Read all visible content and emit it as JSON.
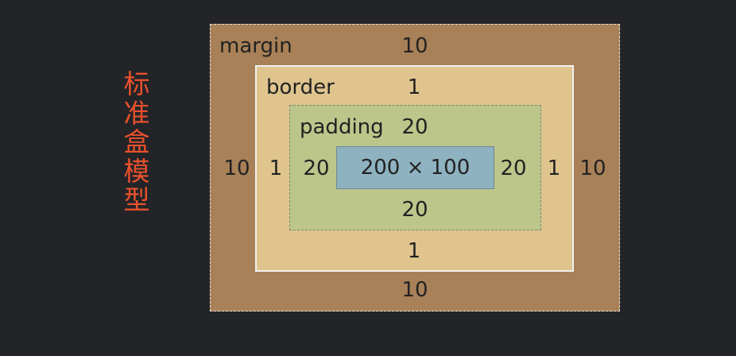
{
  "title": "标准盒模型",
  "margin": {
    "label": "margin",
    "top": "10",
    "right": "10",
    "bottom": "10",
    "left": "10"
  },
  "border": {
    "label": "border",
    "top": "1",
    "right": "1",
    "bottom": "1",
    "left": "1"
  },
  "padding": {
    "label": "padding",
    "top": "20",
    "right": "20",
    "bottom": "20",
    "left": "20"
  },
  "content": {
    "label": "200 × 100"
  },
  "colors": {
    "title": "#e8512b",
    "background": "#232428",
    "margin": "#a88158",
    "border": "#dfc48e",
    "padding": "#bcc68b",
    "content": "#8eb2c0"
  }
}
